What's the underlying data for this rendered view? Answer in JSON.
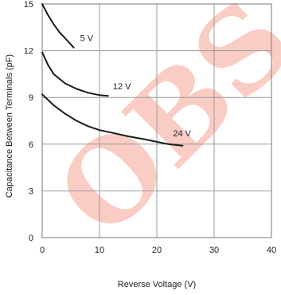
{
  "chart_data": {
    "type": "line",
    "xlabel": "Reverse Voltage (V)",
    "ylabel": "Capacitance Between Terminals (pF)",
    "xlim": [
      0,
      40
    ],
    "ylim": [
      0,
      15
    ],
    "xticks": [
      "0",
      "10",
      "20",
      "30",
      "40"
    ],
    "yticks": [
      "0",
      "3",
      "6",
      "9",
      "12",
      "15"
    ],
    "grid": true,
    "series": [
      {
        "name": "5 V",
        "x": [
          0,
          1,
          2,
          3,
          4,
          5.5
        ],
        "y": [
          15,
          14.3,
          13.7,
          13.2,
          12.8,
          12.2
        ]
      },
      {
        "name": "12 V",
        "x": [
          0,
          1,
          2,
          4,
          6,
          8,
          10,
          11.5
        ],
        "y": [
          11.9,
          11.1,
          10.5,
          9.9,
          9.55,
          9.3,
          9.15,
          9.1
        ]
      },
      {
        "name": "24 V",
        "x": [
          0,
          2,
          4,
          6,
          8,
          10,
          12,
          15,
          18,
          20,
          22,
          24.5
        ],
        "y": [
          9.2,
          8.5,
          7.95,
          7.5,
          7.15,
          6.9,
          6.75,
          6.5,
          6.3,
          6.15,
          6.0,
          5.9
        ]
      }
    ],
    "watermark": "OBS",
    "colors": {
      "curve": "#1a1a1a",
      "grid": "#9a9a9a",
      "watermark": "#f4a494"
    }
  }
}
